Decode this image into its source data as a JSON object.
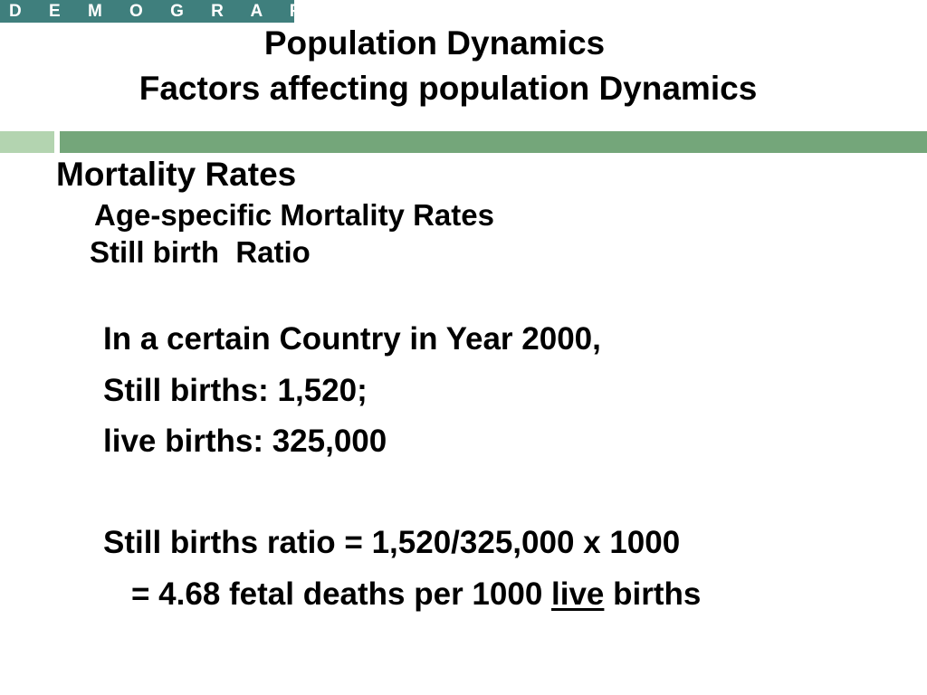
{
  "header": {
    "tag": "D E M O G R A P H Y",
    "title_line1": "Population Dynamics",
    "title_line2": "Factors affecting population Dynamics"
  },
  "section": {
    "heading": "Mortality Rates",
    "subheading": "Age-specific Mortality Rates",
    "topic": "Still birth  Ratio"
  },
  "body": {
    "line1": "In a certain Country in Year 2000,",
    "line2": "Still births: 1,520;",
    "line3": "live births: 325,000",
    "line4": "Still births ratio = 1,520/325,000 x 1000",
    "line5_pre": "= 4.68 fetal deaths per 1000 ",
    "line5_underlined": "live",
    "line5_post": " births"
  },
  "colors": {
    "tag_bg": "#3f7f7d",
    "bar_light": "#b3d4b0",
    "bar_dark": "#74a67a"
  }
}
